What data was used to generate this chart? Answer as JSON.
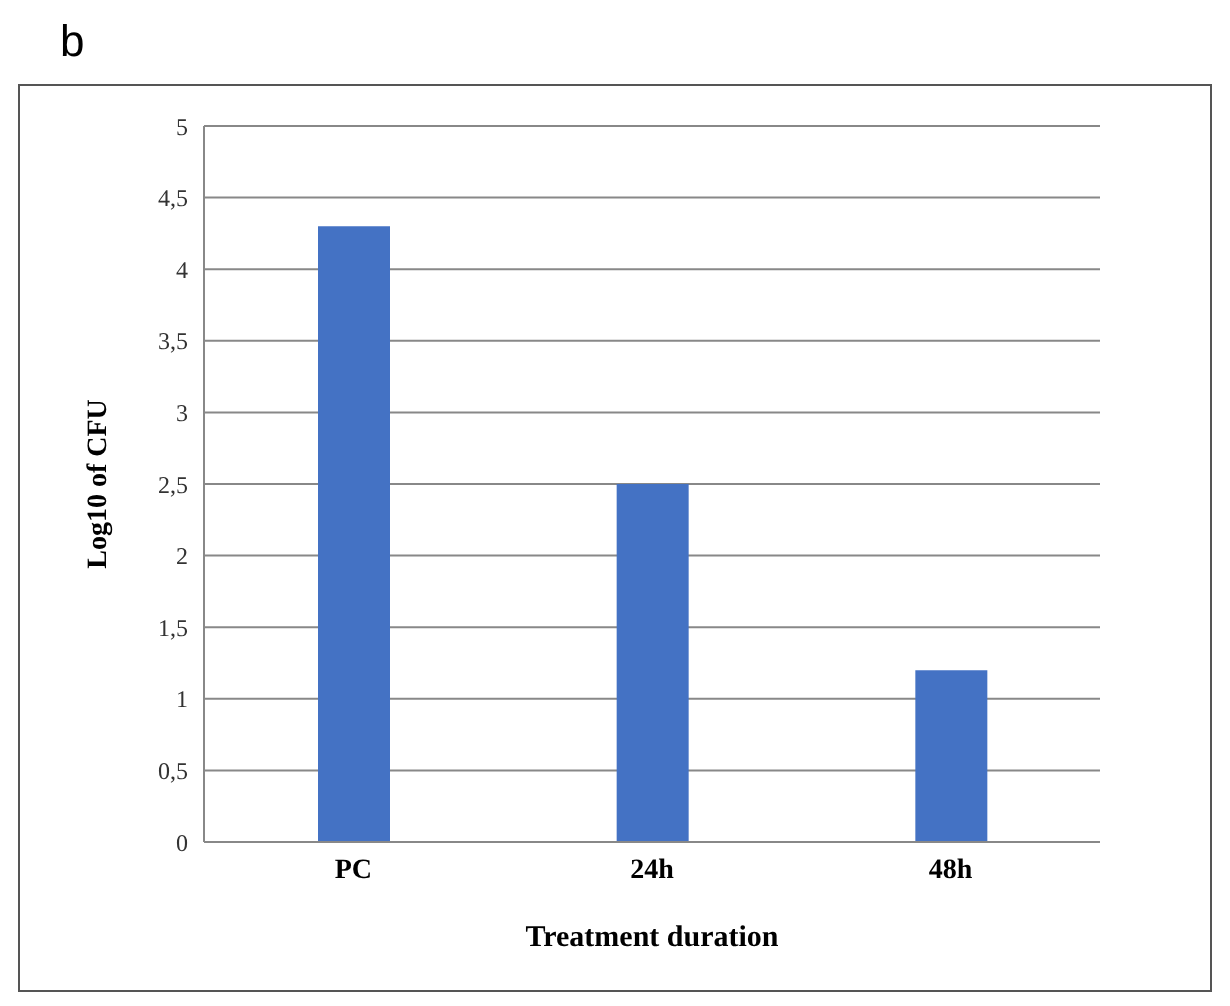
{
  "chart_data": {
    "type": "bar",
    "title": "b",
    "xlabel": "Treatment duration",
    "ylabel": "Log10 of CFU",
    "categories": [
      "PC",
      "24h",
      "48h"
    ],
    "values": [
      4.3,
      2.5,
      1.2
    ],
    "color": "#4472c4",
    "ylim": [
      0,
      5
    ],
    "yticks": [
      0,
      {
        "value": 0.5,
        "label": "0,5"
      },
      1,
      {
        "value": 1.5,
        "label": "1,5"
      },
      2,
      {
        "value": 2.5,
        "label": "2,5"
      },
      3,
      {
        "value": 3.5,
        "label": "3,5"
      },
      4,
      {
        "value": 4.5,
        "label": "4,5"
      },
      5
    ],
    "grid": "y"
  }
}
